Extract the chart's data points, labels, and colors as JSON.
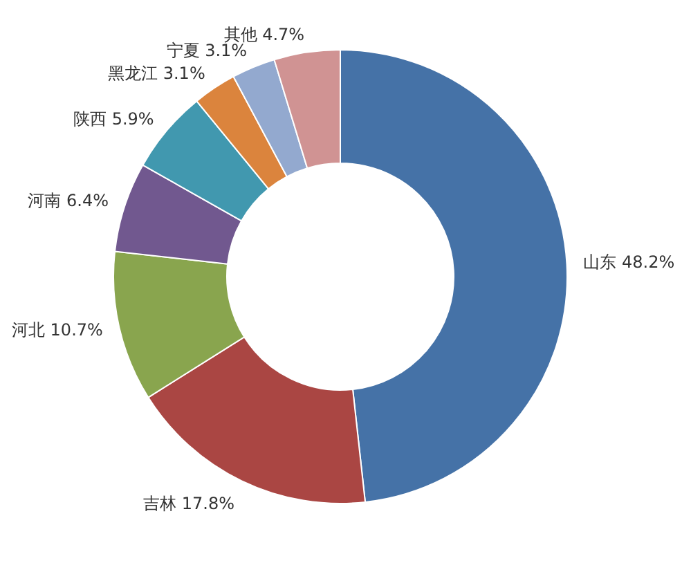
{
  "chart_data": {
    "type": "donut",
    "categories": [
      "山东",
      "吉林",
      "河北",
      "河南",
      "陕西",
      "黑龙江",
      "宁夏",
      "其他"
    ],
    "values": [
      48.2,
      17.8,
      10.7,
      6.4,
      5.9,
      3.1,
      3.1,
      4.7
    ],
    "value_labels": [
      "48.2%",
      "17.8%",
      "10.7%",
      "6.4%",
      "5.9%",
      "3.1%",
      "3.1%",
      "4.7%"
    ],
    "colors": [
      "#4572a7",
      "#aa4643",
      "#89a54e",
      "#71588f",
      "#4198af",
      "#db843d",
      "#93a9cf",
      "#d09393"
    ]
  }
}
